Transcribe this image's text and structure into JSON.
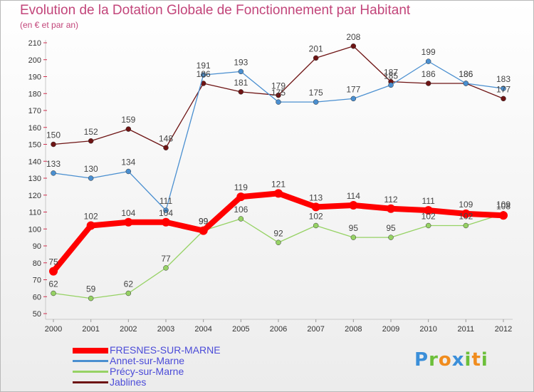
{
  "chart_data": {
    "type": "line",
    "title": "Evolution de la Dotation Globale de Fonctionnement par Habitant",
    "subtitle": "(en € et par an)",
    "xlabel": "",
    "ylabel": "",
    "x": [
      "2000",
      "2001",
      "2002",
      "2003",
      "2004",
      "2005",
      "2006",
      "2007",
      "2008",
      "2009",
      "2010",
      "2011",
      "2012"
    ],
    "ylim": [
      50,
      210
    ],
    "ytick_step": 10,
    "grid": false,
    "series": [
      {
        "name": "FRESNES-SUR-MARNE",
        "color": "#ff0000",
        "values": [
          75,
          102,
          104,
          104,
          99,
          119,
          121,
          113,
          114,
          112,
          111,
          109,
          108
        ]
      },
      {
        "name": "Annet-sur-Marne",
        "color": "#4a8fd0",
        "values": [
          133,
          130,
          134,
          111,
          191,
          193,
          175,
          175,
          177,
          185,
          199,
          186,
          183
        ]
      },
      {
        "name": "Précy-sur-Marne",
        "color": "#96d264",
        "values": [
          62,
          59,
          62,
          77,
          99,
          106,
          92,
          102,
          95,
          95,
          102,
          102,
          109
        ]
      },
      {
        "name": "Jablines",
        "color": "#6e1414",
        "values": [
          150,
          152,
          159,
          148,
          186,
          181,
          179,
          201,
          208,
          187,
          186,
          186,
          177
        ]
      }
    ],
    "legend_position": "bottom-left"
  },
  "logo": {
    "letters": [
      {
        "char": "P",
        "color": "#3b8fd9"
      },
      {
        "char": "r",
        "color": "#6cbf3a"
      },
      {
        "char": "o",
        "color": "#f08c1e"
      },
      {
        "char": "x",
        "color": "#3b8fd9"
      },
      {
        "char": "i",
        "color": "#6cbf3a"
      },
      {
        "char": "t",
        "color": "#f08c1e"
      },
      {
        "char": "i",
        "color": "#6cbf3a"
      }
    ]
  }
}
